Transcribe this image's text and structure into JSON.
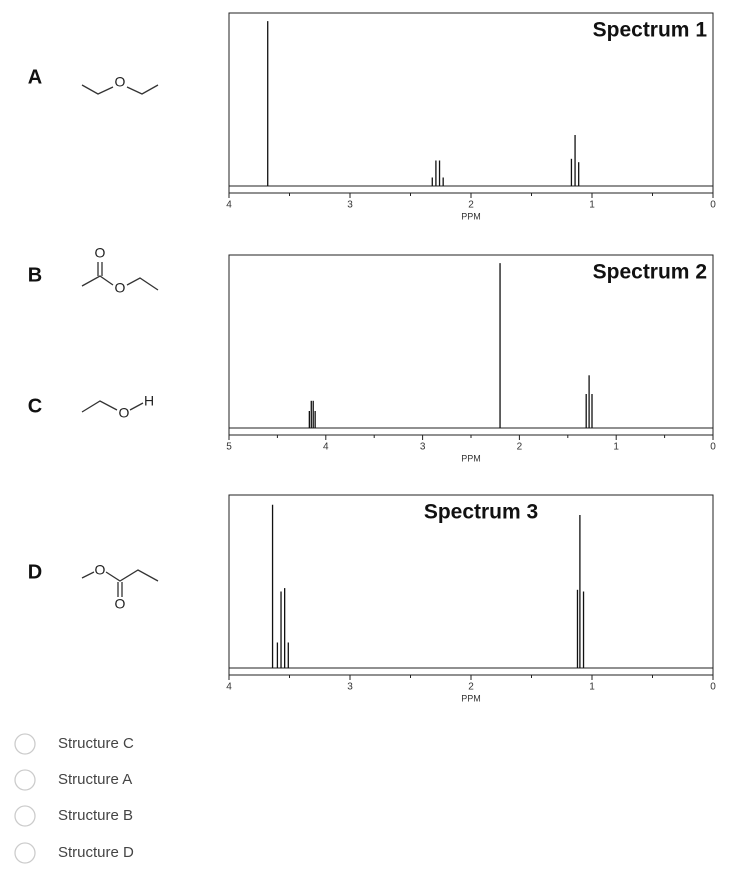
{
  "structures": [
    {
      "label": "A",
      "atoms": [
        "O"
      ]
    },
    {
      "label": "B",
      "atoms": [
        "O",
        "O"
      ]
    },
    {
      "label": "C",
      "atoms": [
        "O",
        "H"
      ]
    },
    {
      "label": "D",
      "atoms": [
        "O",
        "O"
      ]
    }
  ],
  "spectra": [
    {
      "title": "Spectrum 1",
      "xlabel": "PPM",
      "xlim": [
        4,
        0
      ],
      "xticks": [
        4,
        3,
        2,
        1,
        0
      ],
      "peaks": [
        {
          "ppm": 3.68,
          "height": 0.97
        },
        {
          "ppm": 2.32,
          "height": 0.05
        },
        {
          "ppm": 2.29,
          "height": 0.15
        },
        {
          "ppm": 2.26,
          "height": 0.15
        },
        {
          "ppm": 2.23,
          "height": 0.05
        },
        {
          "ppm": 1.17,
          "height": 0.16
        },
        {
          "ppm": 1.14,
          "height": 0.3
        },
        {
          "ppm": 1.11,
          "height": 0.14
        }
      ]
    },
    {
      "title": "Spectrum 2",
      "xlabel": "PPM",
      "xlim": [
        5,
        0
      ],
      "xticks": [
        5,
        4,
        3,
        2,
        1,
        0
      ],
      "peaks": [
        {
          "ppm": 4.17,
          "height": 0.1
        },
        {
          "ppm": 4.15,
          "height": 0.16
        },
        {
          "ppm": 4.13,
          "height": 0.16
        },
        {
          "ppm": 4.11,
          "height": 0.1
        },
        {
          "ppm": 2.2,
          "height": 0.97
        },
        {
          "ppm": 1.31,
          "height": 0.2
        },
        {
          "ppm": 1.28,
          "height": 0.31
        },
        {
          "ppm": 1.25,
          "height": 0.2
        }
      ]
    },
    {
      "title": "Spectrum 3",
      "xlabel": "PPM",
      "xlim": [
        4,
        0
      ],
      "xticks": [
        4,
        3,
        2,
        1,
        0
      ],
      "peaks": [
        {
          "ppm": 3.64,
          "height": 0.96
        },
        {
          "ppm": 3.6,
          "height": 0.15
        },
        {
          "ppm": 3.57,
          "height": 0.45
        },
        {
          "ppm": 3.54,
          "height": 0.47
        },
        {
          "ppm": 3.51,
          "height": 0.15
        },
        {
          "ppm": 1.12,
          "height": 0.46
        },
        {
          "ppm": 1.1,
          "height": 0.9
        },
        {
          "ppm": 1.07,
          "height": 0.45
        }
      ]
    }
  ],
  "options": [
    "Structure C",
    "Structure A",
    "Structure B",
    "Structure D"
  ]
}
